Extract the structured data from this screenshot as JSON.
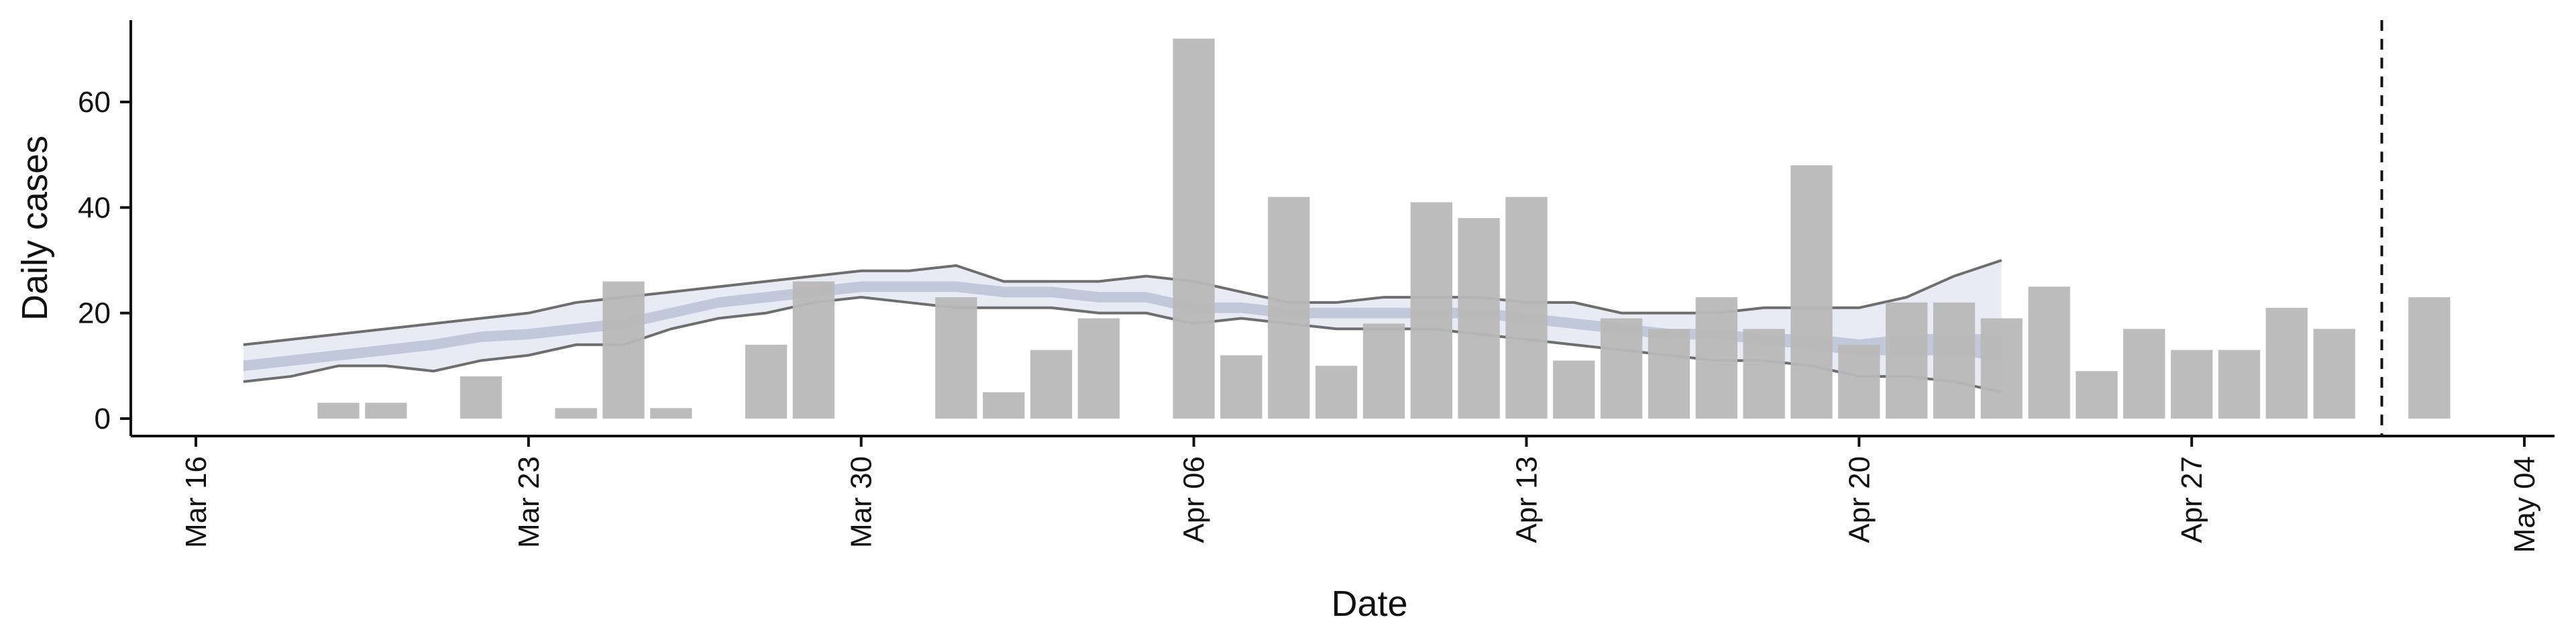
{
  "chart_data": {
    "type": "bar",
    "title": "",
    "xlabel": "Date",
    "ylabel": "Daily cases",
    "xlim": [
      "2020-03-16",
      "2020-05-04"
    ],
    "ylim": [
      -3,
      76
    ],
    "x_ticks": [
      {
        "date": "2020-03-16",
        "label": "Mar 16"
      },
      {
        "date": "2020-03-23",
        "label": "Mar 23"
      },
      {
        "date": "2020-03-30",
        "label": "Mar 30"
      },
      {
        "date": "2020-04-06",
        "label": "Apr 06"
      },
      {
        "date": "2020-04-13",
        "label": "Apr 13"
      },
      {
        "date": "2020-04-20",
        "label": "Apr 20"
      },
      {
        "date": "2020-04-27",
        "label": "Apr 27"
      },
      {
        "date": "2020-05-04",
        "label": "May 04"
      }
    ],
    "y_ticks": [
      0,
      20,
      40,
      60
    ],
    "grid": false,
    "bars": {
      "color": "#b8b8b8",
      "data": [
        {
          "date": "2020-03-19",
          "value": 3
        },
        {
          "date": "2020-03-20",
          "value": 3
        },
        {
          "date": "2020-03-22",
          "value": 8
        },
        {
          "date": "2020-03-24",
          "value": 2
        },
        {
          "date": "2020-03-25",
          "value": 26
        },
        {
          "date": "2020-03-26",
          "value": 2
        },
        {
          "date": "2020-03-28",
          "value": 14
        },
        {
          "date": "2020-03-29",
          "value": 26
        },
        {
          "date": "2020-04-01",
          "value": 23
        },
        {
          "date": "2020-04-02",
          "value": 5
        },
        {
          "date": "2020-04-03",
          "value": 13
        },
        {
          "date": "2020-04-04",
          "value": 19
        },
        {
          "date": "2020-04-06",
          "value": 72
        },
        {
          "date": "2020-04-07",
          "value": 12
        },
        {
          "date": "2020-04-08",
          "value": 42
        },
        {
          "date": "2020-04-09",
          "value": 10
        },
        {
          "date": "2020-04-10",
          "value": 18
        },
        {
          "date": "2020-04-11",
          "value": 41
        },
        {
          "date": "2020-04-12",
          "value": 38
        },
        {
          "date": "2020-04-13",
          "value": 42
        },
        {
          "date": "2020-04-14",
          "value": 11
        },
        {
          "date": "2020-04-15",
          "value": 19
        },
        {
          "date": "2020-04-16",
          "value": 17
        },
        {
          "date": "2020-04-17",
          "value": 23
        },
        {
          "date": "2020-04-18",
          "value": 17
        },
        {
          "date": "2020-04-19",
          "value": 48
        },
        {
          "date": "2020-04-20",
          "value": 14
        },
        {
          "date": "2020-04-21",
          "value": 22
        },
        {
          "date": "2020-04-22",
          "value": 22
        },
        {
          "date": "2020-04-23",
          "value": 19
        },
        {
          "date": "2020-04-24",
          "value": 25
        },
        {
          "date": "2020-04-25",
          "value": 9
        },
        {
          "date": "2020-04-26",
          "value": 17
        },
        {
          "date": "2020-04-27",
          "value": 13
        },
        {
          "date": "2020-04-28",
          "value": 13
        },
        {
          "date": "2020-04-29",
          "value": 21
        },
        {
          "date": "2020-04-30",
          "value": 17
        },
        {
          "date": "2020-05-02",
          "value": 23
        }
      ]
    },
    "estimate_band": {
      "outer_line_color": "#6e6e6e",
      "fill_outer": "#e4e7f1",
      "fill_inner": "#b3bcd2",
      "dates": [
        "2020-03-17",
        "2020-03-18",
        "2020-03-19",
        "2020-03-20",
        "2020-03-21",
        "2020-03-22",
        "2020-03-23",
        "2020-03-24",
        "2020-03-25",
        "2020-03-26",
        "2020-03-27",
        "2020-03-28",
        "2020-03-29",
        "2020-03-30",
        "2020-03-31",
        "2020-04-01",
        "2020-04-02",
        "2020-04-03",
        "2020-04-04",
        "2020-04-05",
        "2020-04-06",
        "2020-04-07",
        "2020-04-08",
        "2020-04-09",
        "2020-04-10",
        "2020-04-11",
        "2020-04-12",
        "2020-04-13",
        "2020-04-14",
        "2020-04-15",
        "2020-04-16",
        "2020-04-17",
        "2020-04-18",
        "2020-04-19",
        "2020-04-20",
        "2020-04-21",
        "2020-04-22",
        "2020-04-23"
      ],
      "lower_90": [
        7,
        8,
        10,
        10,
        9,
        11,
        12,
        14,
        14,
        17,
        19,
        20,
        22,
        23,
        22,
        21,
        21,
        21,
        20,
        20,
        18,
        19,
        18,
        17,
        17,
        17,
        16,
        15,
        14,
        13,
        12,
        11,
        11,
        10,
        8,
        8,
        7,
        5
      ],
      "upper_90": [
        14,
        15,
        16,
        17,
        18,
        19,
        20,
        22,
        23,
        24,
        25,
        26,
        27,
        28,
        28,
        29,
        26,
        26,
        26,
        27,
        26,
        24,
        22,
        22,
        23,
        23,
        23,
        22,
        22,
        20,
        20,
        20,
        21,
        21,
        21,
        23,
        27,
        30
      ],
      "lower_50": [
        9,
        10,
        11,
        12,
        13,
        14.5,
        15,
        16,
        17,
        19,
        21,
        22,
        23,
        24,
        24,
        24,
        23,
        23,
        22,
        22,
        20,
        20,
        19,
        19,
        19,
        19,
        19,
        18,
        17,
        16,
        15,
        15,
        14,
        13,
        12,
        12,
        12,
        11
      ],
      "upper_50": [
        11,
        12,
        13,
        14,
        15,
        16.5,
        17,
        18,
        19,
        21,
        23,
        24,
        25,
        26,
        26,
        26,
        25,
        25,
        24,
        24,
        22,
        22,
        21,
        21,
        21,
        21,
        21,
        20,
        19,
        18,
        17,
        17,
        16,
        16,
        15,
        16,
        16,
        16
      ]
    },
    "reference_line": {
      "date": "2020-05-01",
      "style": "dashed",
      "color": "#111111"
    }
  }
}
